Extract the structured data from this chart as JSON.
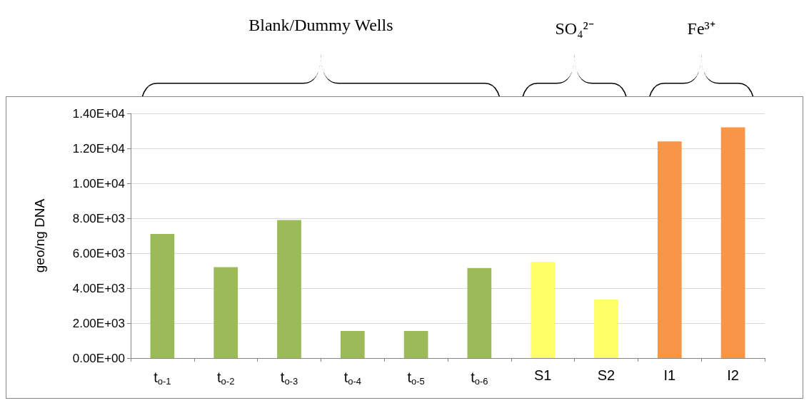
{
  "chart_data": {
    "type": "bar",
    "ylabel": "geo/ng DNA",
    "categories": [
      "t$_{o-1}$",
      "t$_{o-2}$",
      "t$_{o-3}$",
      "t$_{o-4}$",
      "t$_{o-5}$",
      "t$_{o-6}$",
      "S1",
      "S2",
      "I1",
      "I2"
    ],
    "values": [
      7100,
      5200,
      7900,
      1550,
      1550,
      5150,
      5500,
      3350,
      12400,
      13200
    ],
    "colors": [
      "#9bbb59",
      "#9bbb59",
      "#9bbb59",
      "#9bbb59",
      "#9bbb59",
      "#9bbb59",
      "#ffff66",
      "#ffff66",
      "#f79646",
      "#f79646"
    ],
    "ylim": [
      0,
      14000
    ],
    "yticks": [
      {
        "value": 0,
        "label": "0.00E+00"
      },
      {
        "value": 2000,
        "label": "2.00E+03"
      },
      {
        "value": 4000,
        "label": "4.00E+03"
      },
      {
        "value": 6000,
        "label": "6.00E+03"
      },
      {
        "value": 8000,
        "label": "8.00E+03"
      },
      {
        "value": 10000,
        "label": "1.00E+04"
      },
      {
        "value": 12000,
        "label": "1.20E+04"
      },
      {
        "value": 14000,
        "label": "1.40E+04"
      }
    ],
    "grid": true,
    "annotations": [
      "Blank/Dummy Wells",
      "SO₄²⁻",
      "Fe³⁺"
    ]
  }
}
